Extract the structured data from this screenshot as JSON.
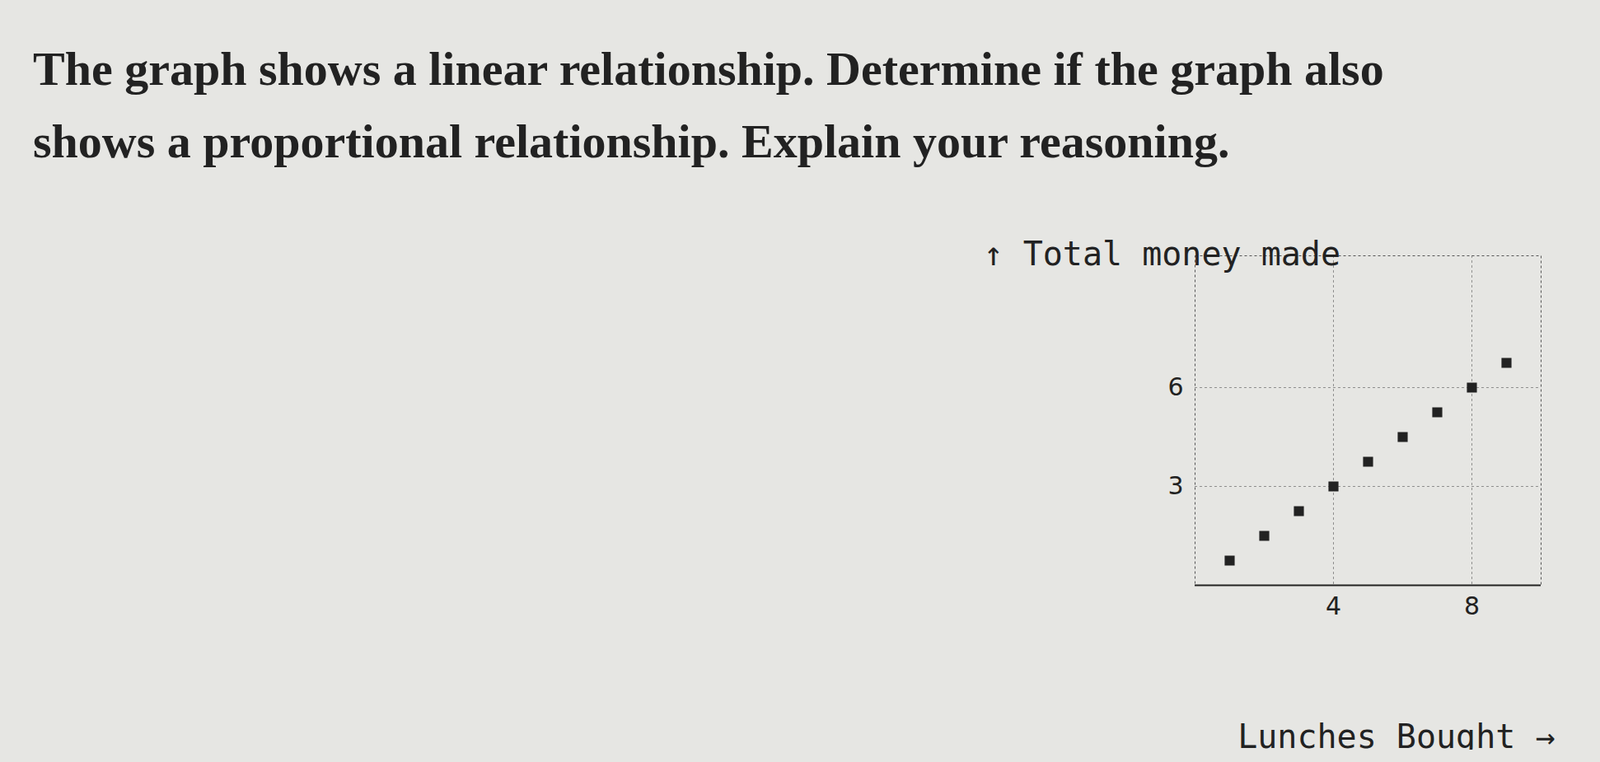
{
  "chart_data": {
    "type": "scatter",
    "title": "The graph shows a linear relationship. Determine if the graph also shows a proportional relationship. Explain your reasoning.",
    "x_label": "Lunches Bought",
    "y_label": "Total money made",
    "x": [
      1,
      2,
      3,
      4,
      5,
      6,
      7,
      8,
      9
    ],
    "values": [
      0.75,
      1.5,
      2.25,
      3,
      3.75,
      4.5,
      5.25,
      6,
      6.75
    ],
    "color": "#222222",
    "marker": "square",
    "xlim": [
      0,
      10
    ],
    "xticks": [
      4,
      8
    ],
    "ylim": [
      0,
      10
    ],
    "yticks": [
      3,
      6
    ],
    "grid": true
  }
}
